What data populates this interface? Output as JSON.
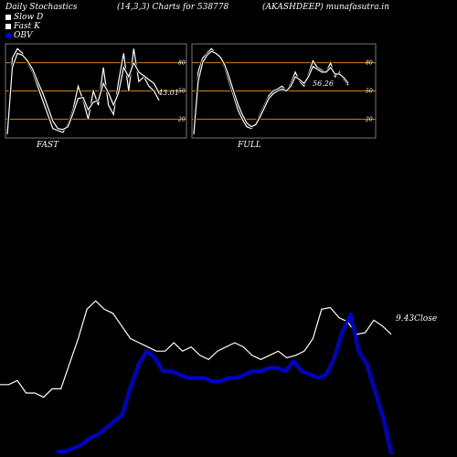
{
  "header": {
    "title": "Daily Stochastics",
    "params": "(14,3,3) Charts for 538778",
    "site": "(AKASHDEEP) munafasutra.in"
  },
  "legend": [
    {
      "label": "Slow  D",
      "color": "#ffffff"
    },
    {
      "label": "Fast K",
      "color": "#ffffff"
    },
    {
      "label": "OBV",
      "color": "#0000ff"
    }
  ],
  "chart_data": [
    {
      "type": "line",
      "title": "FAST",
      "ylim": [
        0,
        100
      ],
      "yticks": [
        "80",
        "50",
        "20"
      ],
      "last_value_label": "43.01",
      "series": [
        {
          "name": "Fast K",
          "values": [
            5,
            85,
            95,
            90,
            80,
            70,
            55,
            40,
            25,
            10,
            8,
            6,
            15,
            30,
            55,
            40,
            20,
            50,
            35,
            75,
            35,
            25,
            60,
            90,
            50,
            95,
            60,
            65,
            55,
            50,
            40
          ]
        },
        {
          "name": "Slow  D",
          "values": [
            4,
            75,
            90,
            88,
            82,
            73,
            60,
            48,
            33,
            18,
            10,
            9,
            12,
            26,
            42,
            43,
            30,
            38,
            40,
            58,
            48,
            35,
            48,
            75,
            65,
            80,
            70,
            66,
            62,
            58,
            48
          ]
        }
      ]
    },
    {
      "type": "line",
      "title": "FULL",
      "ylim": [
        0,
        100
      ],
      "yticks": [
        "80",
        "50",
        "20"
      ],
      "last_value_label": "56.26",
      "series": [
        {
          "name": "Fast K",
          "values": [
            5,
            70,
            85,
            90,
            95,
            90,
            85,
            75,
            60,
            45,
            30,
            20,
            12,
            10,
            15,
            25,
            35,
            45,
            50,
            52,
            55,
            50,
            58,
            70,
            60,
            55,
            68,
            82,
            75,
            72,
            70,
            80,
            65,
            70,
            62,
            56
          ]
        },
        {
          "name": "Slow  D",
          "values": [
            4,
            60,
            80,
            88,
            92,
            90,
            86,
            78,
            65,
            50,
            36,
            25,
            16,
            12,
            14,
            22,
            32,
            42,
            47,
            50,
            52,
            50,
            55,
            65,
            62,
            58,
            65,
            76,
            73,
            70,
            70,
            75,
            68,
            68,
            64,
            58
          ]
        }
      ]
    },
    {
      "type": "line",
      "last_value_label": "9.43",
      "close_label": "Close",
      "series": [
        {
          "name": "Close",
          "values": [
            410,
            410,
            405,
            420,
            420,
            425,
            415,
            415,
            385,
            355,
            320,
            310,
            320,
            325,
            340,
            355,
            360,
            365,
            370,
            370,
            360,
            370,
            365,
            375,
            380,
            370,
            365,
            360,
            365,
            375,
            380,
            375,
            370,
            378,
            375,
            370,
            355,
            320,
            318,
            330,
            335,
            350,
            348,
            333,
            340,
            350
          ]
        },
        {
          "name": "OBV",
          "values": [
            -40,
            -40,
            -35,
            -30,
            -20,
            -15,
            -5,
            5,
            15,
            55,
            90,
            110,
            100,
            80,
            80,
            75,
            70,
            70,
            70,
            65,
            65,
            70,
            70,
            75,
            80,
            80,
            85,
            85,
            80,
            95,
            80,
            75,
            70,
            75,
            100,
            140,
            165,
            110,
            90,
            50,
            10,
            -50
          ]
        }
      ]
    }
  ]
}
